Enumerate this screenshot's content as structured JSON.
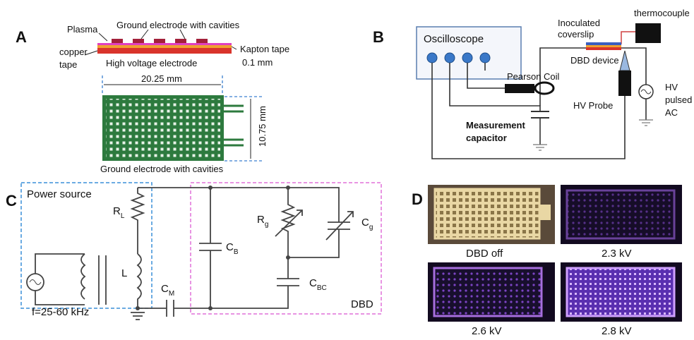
{
  "panels": {
    "a": {
      "label": "A",
      "plasma": "Plasma",
      "ground_top": "Ground electrode with cavities",
      "copper": [
        "copper",
        "tape"
      ],
      "kapton": "Kapton tape",
      "thickness": "0.1 mm",
      "hv_electrode": "High voltage electrode",
      "width": "20.25 mm",
      "height": "10.75 mm",
      "ground_bottom": "Ground electrode with cavities"
    },
    "b": {
      "label": "B",
      "oscilloscope": "Oscilloscope",
      "coverslip": [
        "Inoculated",
        "coverslip"
      ],
      "thermocouple": "thermocouple",
      "dbd_device": "DBD device",
      "pearson": "Pearson Coil",
      "hv_probe": "HV Probe",
      "hv_source": [
        "HV",
        "pulsed",
        "AC"
      ],
      "capacitor": [
        "Measurement",
        "capacitor"
      ]
    },
    "c": {
      "label": "C",
      "power_source": "Power source",
      "rl": {
        "main": "R",
        "sub": "L"
      },
      "inductor": "L",
      "frequency": "f=25-60 kHz",
      "cm": {
        "main": "C",
        "sub": "M"
      },
      "cb": {
        "main": "C",
        "sub": "B"
      },
      "rg": {
        "main": "R",
        "sub": "g"
      },
      "cg": {
        "main": "C",
        "sub": "g"
      },
      "cbc": {
        "main": "C",
        "sub": "BC"
      },
      "dbd": "DBD"
    },
    "d": {
      "label": "D",
      "images": [
        "DBD off",
        "2.3  kV",
        "2.6 kV",
        "2.8 kV"
      ]
    }
  }
}
